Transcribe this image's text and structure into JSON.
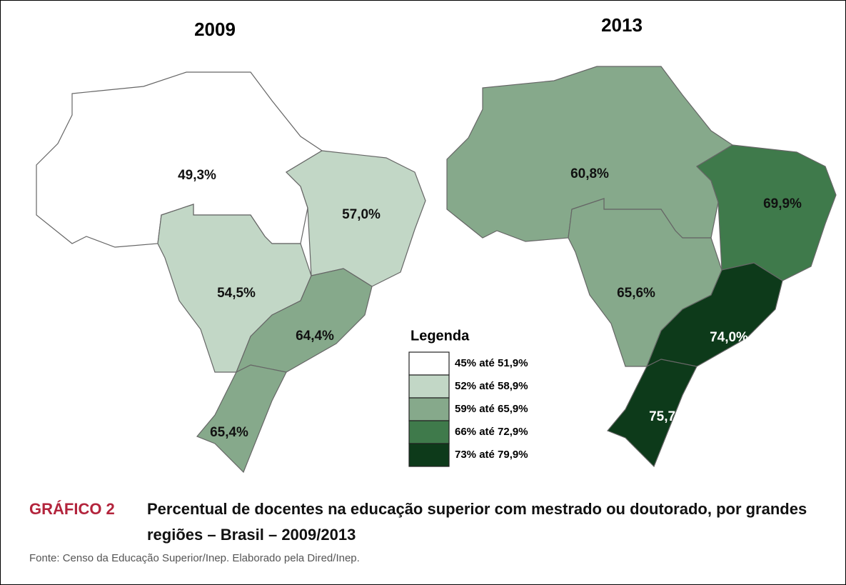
{
  "maps": [
    {
      "year": "2009",
      "regions": [
        {
          "label": "49,3%",
          "color": "#ffffff"
        },
        {
          "label": "57,0%",
          "color": "#c2d7c6"
        },
        {
          "label": "54,5%",
          "color": "#c2d7c6"
        },
        {
          "label": "64,4%",
          "color": "#86a98b"
        },
        {
          "label": "65,4%",
          "color": "#86a98b"
        }
      ]
    },
    {
      "year": "2013",
      "regions": [
        {
          "label": "60,8%",
          "color": "#86a98b"
        },
        {
          "label": "69,9%",
          "color": "#3f7a4b"
        },
        {
          "label": "65,6%",
          "color": "#86a98b"
        },
        {
          "label": "74,0%",
          "color": "#0d3a1a"
        },
        {
          "label": "75,7%",
          "color": "#0d3a1a"
        }
      ]
    }
  ],
  "legend": {
    "title": "Legenda",
    "items": [
      {
        "label": "45% até 51,9%",
        "color": "#ffffff"
      },
      {
        "label": "52% até 58,9%",
        "color": "#c2d7c6"
      },
      {
        "label": "59% até 65,9%",
        "color": "#86a98b"
      },
      {
        "label": "66% até 72,9%",
        "color": "#3f7a4b"
      },
      {
        "label": "73% até 79,9%",
        "color": "#0d3a1a"
      }
    ]
  },
  "caption": {
    "number": "GRÁFICO 2",
    "title": "Percentual de docentes na educação superior com mestrado ou doutorado, por grandes regiões – Brasil – 2009/2013"
  },
  "source": "Fonte: Censo da Educação Superior/Inep. Elaborado pela Dired/Inep."
}
